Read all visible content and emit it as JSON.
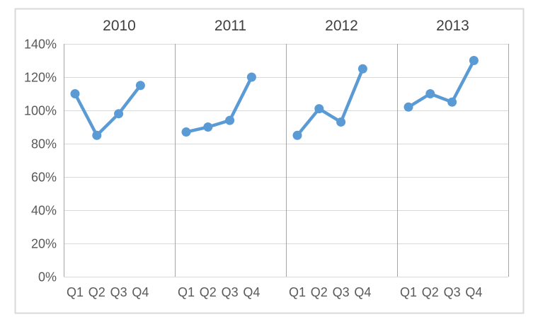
{
  "chart_data": {
    "type": "line",
    "title": "",
    "categories": [
      "Q1",
      "Q2",
      "Q3",
      "Q4"
    ],
    "series": [
      {
        "name": "2010",
        "values": [
          110,
          85,
          98,
          115
        ]
      },
      {
        "name": "2011",
        "values": [
          87,
          90,
          94,
          120
        ]
      },
      {
        "name": "2012",
        "values": [
          85,
          101,
          93,
          125
        ]
      },
      {
        "name": "2013",
        "values": [
          102,
          110,
          105,
          130
        ]
      }
    ],
    "panel_titles": [
      "2010",
      "2011",
      "2012",
      "2013"
    ],
    "ylim": [
      0,
      140
    ],
    "ytick_step": 20,
    "ytick_labels": [
      "0%",
      "20%",
      "40%",
      "60%",
      "80%",
      "100%",
      "120%",
      "140%"
    ],
    "xlabel": "",
    "ylabel": "",
    "grid": true,
    "legend": "none",
    "colors": {
      "line": "#5B9BD5",
      "marker": "#5B9BD5",
      "gridline": "#D9D9D9",
      "panel_divider": "#A6A6A6",
      "outer_border": "#D9D9D9",
      "tick_text": "#595959",
      "title_text": "#3F3F3F",
      "background": "#FFFFFF"
    }
  }
}
